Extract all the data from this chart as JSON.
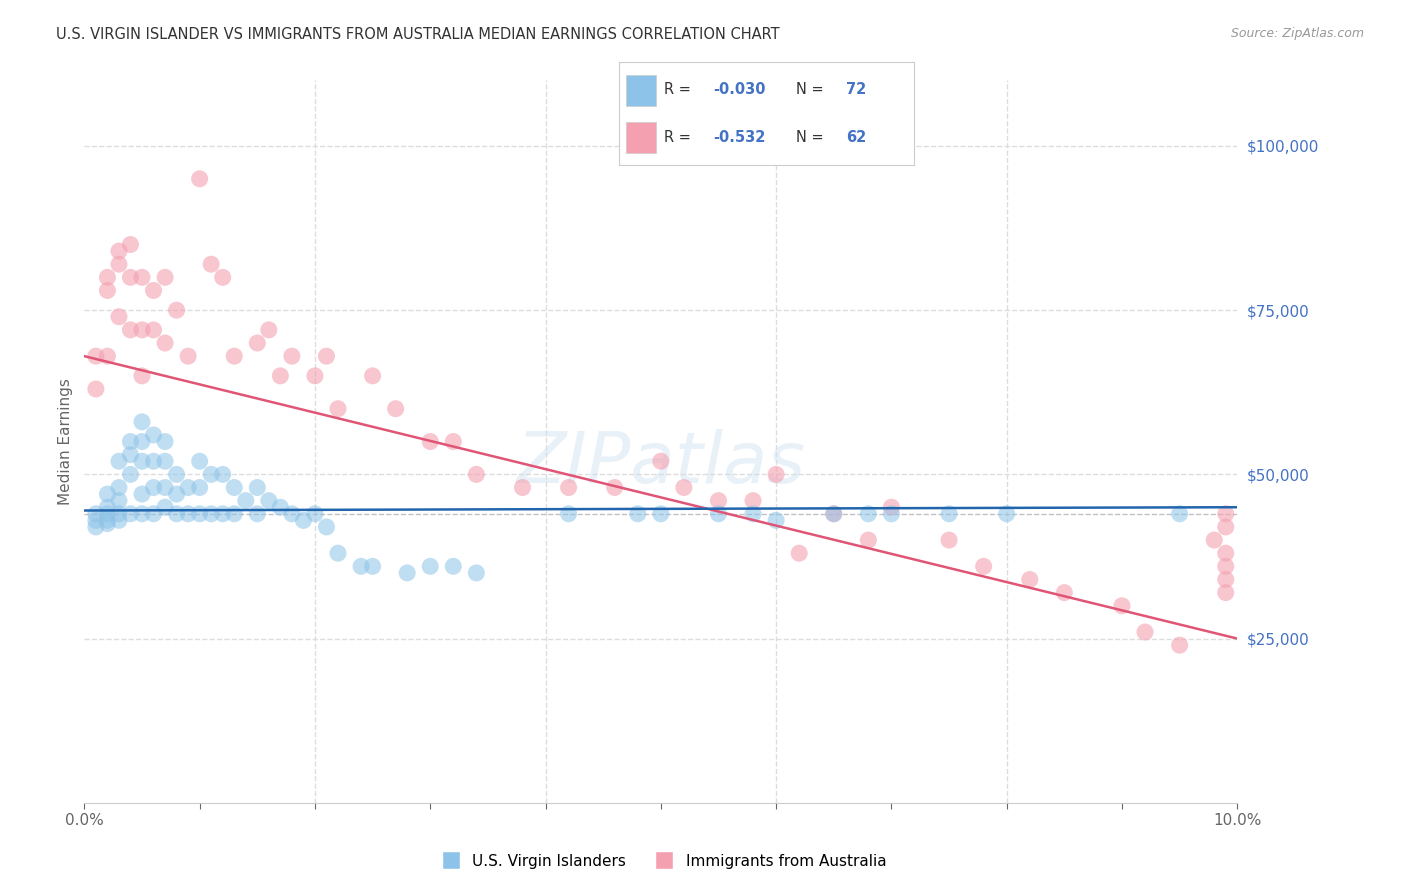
{
  "title": "U.S. VIRGIN ISLANDER VS IMMIGRANTS FROM AUSTRALIA MEDIAN EARNINGS CORRELATION CHART",
  "source": "Source: ZipAtlas.com",
  "ylabel": "Median Earnings",
  "xmin": 0.0,
  "xmax": 0.1,
  "ymin": 0,
  "ymax": 110000,
  "yticks": [
    0,
    25000,
    50000,
    75000,
    100000
  ],
  "ytick_labels": [
    "",
    "$25,000",
    "$50,000",
    "$75,000",
    "$100,000"
  ],
  "legend_r_blue": "-0.030",
  "legend_n_blue": "72",
  "legend_r_pink": "-0.532",
  "legend_n_pink": "62",
  "legend_label_blue": "U.S. Virgin Islanders",
  "legend_label_pink": "Immigrants from Australia",
  "blue_color": "#8dc3e8",
  "pink_color": "#f4a0b0",
  "blue_line_color": "#2166ac",
  "pink_line_color": "#e05575",
  "dashed_line_y": 44000,
  "dashed_line_color": "#bbbbbb",
  "background_color": "#ffffff",
  "grid_color": "#dddddd",
  "title_color": "#333333",
  "axis_label_color": "#666666",
  "right_tick_color": "#4472c4",
  "watermark_text": "ZIPatlas",
  "blue_scatter_x": [
    0.001,
    0.001,
    0.001,
    0.002,
    0.002,
    0.002,
    0.002,
    0.002,
    0.003,
    0.003,
    0.003,
    0.003,
    0.003,
    0.004,
    0.004,
    0.004,
    0.004,
    0.005,
    0.005,
    0.005,
    0.005,
    0.005,
    0.006,
    0.006,
    0.006,
    0.006,
    0.007,
    0.007,
    0.007,
    0.007,
    0.008,
    0.008,
    0.008,
    0.009,
    0.009,
    0.01,
    0.01,
    0.01,
    0.011,
    0.011,
    0.012,
    0.012,
    0.013,
    0.013,
    0.014,
    0.015,
    0.015,
    0.016,
    0.017,
    0.018,
    0.019,
    0.02,
    0.021,
    0.022,
    0.024,
    0.025,
    0.028,
    0.03,
    0.032,
    0.034,
    0.042,
    0.048,
    0.05,
    0.055,
    0.058,
    0.06,
    0.065,
    0.068,
    0.07,
    0.075,
    0.08,
    0.095
  ],
  "blue_scatter_y": [
    44000,
    43000,
    42000,
    47000,
    45000,
    44000,
    43000,
    42500,
    52000,
    48000,
    46000,
    44000,
    43000,
    55000,
    53000,
    50000,
    44000,
    58000,
    55000,
    52000,
    47000,
    44000,
    56000,
    52000,
    48000,
    44000,
    55000,
    52000,
    48000,
    45000,
    50000,
    47000,
    44000,
    48000,
    44000,
    52000,
    48000,
    44000,
    50000,
    44000,
    50000,
    44000,
    48000,
    44000,
    46000,
    48000,
    44000,
    46000,
    45000,
    44000,
    43000,
    44000,
    42000,
    38000,
    36000,
    36000,
    35000,
    36000,
    36000,
    35000,
    44000,
    44000,
    44000,
    44000,
    44000,
    43000,
    44000,
    44000,
    44000,
    44000,
    44000,
    44000
  ],
  "pink_scatter_x": [
    0.001,
    0.001,
    0.002,
    0.002,
    0.002,
    0.003,
    0.003,
    0.003,
    0.004,
    0.004,
    0.004,
    0.005,
    0.005,
    0.005,
    0.006,
    0.006,
    0.007,
    0.007,
    0.008,
    0.009,
    0.01,
    0.011,
    0.012,
    0.013,
    0.015,
    0.016,
    0.017,
    0.018,
    0.02,
    0.021,
    0.022,
    0.025,
    0.027,
    0.03,
    0.032,
    0.034,
    0.038,
    0.042,
    0.046,
    0.05,
    0.052,
    0.055,
    0.058,
    0.06,
    0.062,
    0.065,
    0.068,
    0.07,
    0.075,
    0.078,
    0.082,
    0.085,
    0.09,
    0.092,
    0.095,
    0.098,
    0.099,
    0.099,
    0.099,
    0.099,
    0.099,
    0.099
  ],
  "pink_scatter_y": [
    68000,
    63000,
    80000,
    78000,
    68000,
    84000,
    82000,
    74000,
    85000,
    80000,
    72000,
    80000,
    72000,
    65000,
    78000,
    72000,
    80000,
    70000,
    75000,
    68000,
    95000,
    82000,
    80000,
    68000,
    70000,
    72000,
    65000,
    68000,
    65000,
    68000,
    60000,
    65000,
    60000,
    55000,
    55000,
    50000,
    48000,
    48000,
    48000,
    52000,
    48000,
    46000,
    46000,
    50000,
    38000,
    44000,
    40000,
    45000,
    40000,
    36000,
    34000,
    32000,
    30000,
    26000,
    24000,
    40000,
    42000,
    38000,
    36000,
    34000,
    32000,
    44000
  ]
}
